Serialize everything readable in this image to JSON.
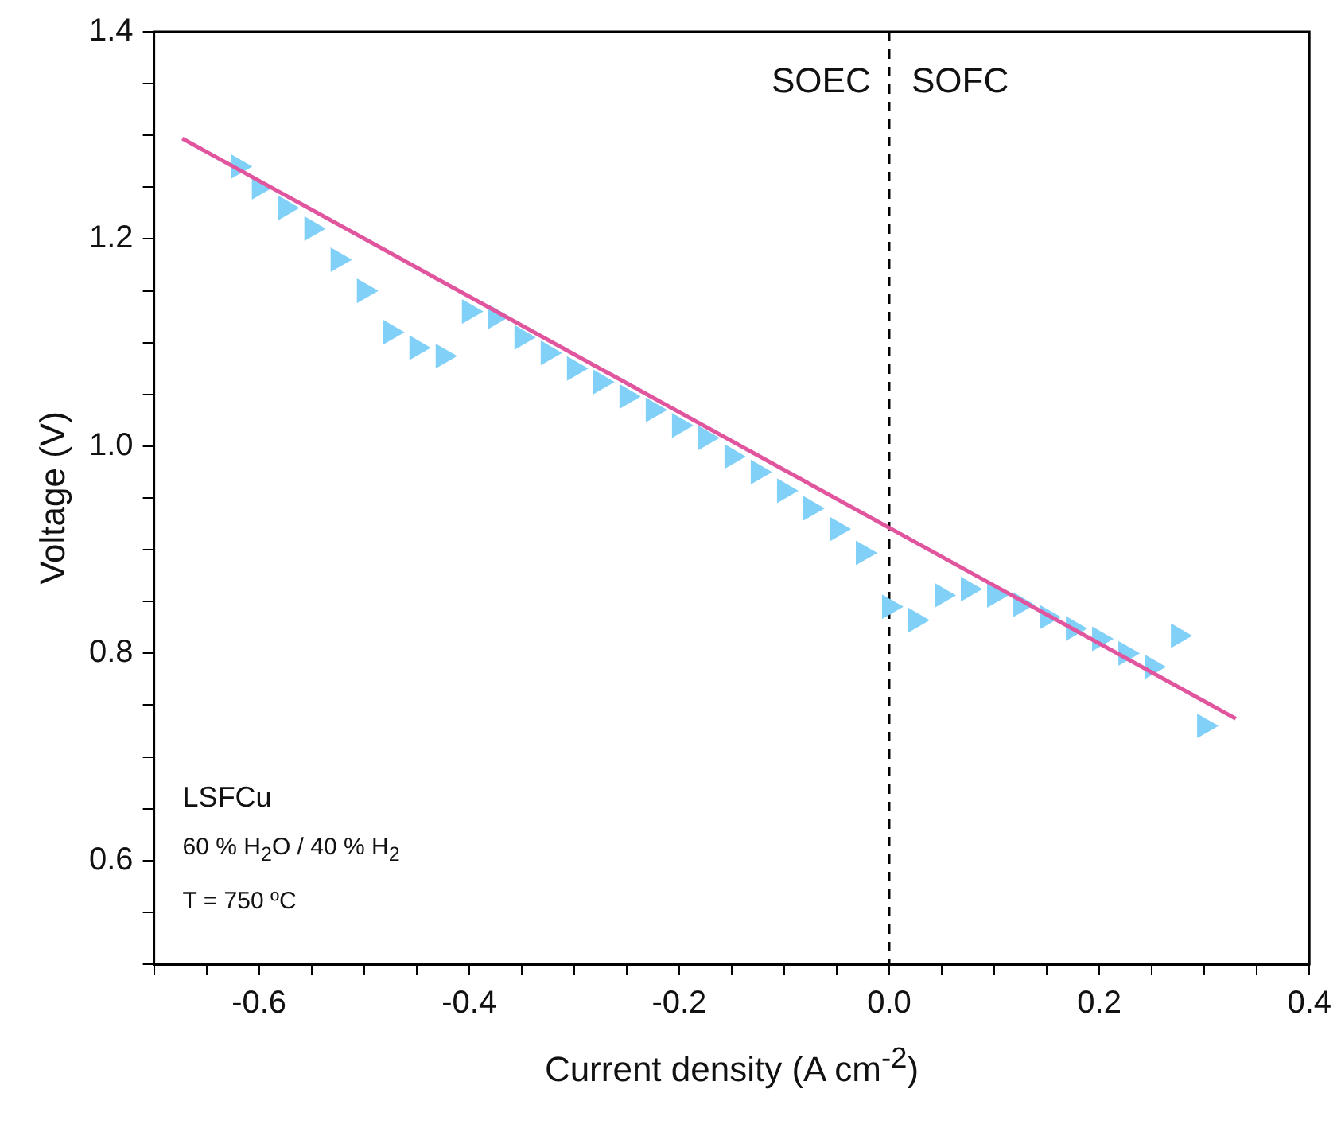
{
  "chart_data": {
    "type": "scatter",
    "xlabel": "Current density (A cm$^{-2}$)",
    "ylabel": "Voltage (V)",
    "xlim": [
      -0.7,
      0.4
    ],
    "ylim": [
      0.5,
      1.4
    ],
    "xticks": [
      {
        "value": -0.7,
        "label": null
      },
      {
        "value": -0.65,
        "label": null
      },
      -0.6,
      {
        "value": -0.55,
        "label": null
      },
      {
        "value": -0.5,
        "label": null
      },
      {
        "value": -0.45,
        "label": null
      },
      -0.4,
      {
        "value": -0.35,
        "label": null
      },
      {
        "value": -0.3,
        "label": null
      },
      {
        "value": -0.25,
        "label": null
      },
      -0.2,
      {
        "value": -0.15,
        "label": null
      },
      {
        "value": -0.1,
        "label": null
      },
      {
        "value": -0.05,
        "label": null
      },
      {
        "value": 0,
        "label": "0.0"
      },
      {
        "value": 0.05,
        "label": null
      },
      {
        "value": 0.1,
        "label": null
      },
      {
        "value": 0.15,
        "label": null
      },
      0.2,
      {
        "value": 0.25,
        "label": null
      },
      {
        "value": 0.3,
        "label": null
      },
      {
        "value": 0.35,
        "label": null
      },
      0.4
    ],
    "yticks": [
      {
        "value": 0.5,
        "label": null
      },
      {
        "value": 0.55,
        "label": null
      },
      0.6,
      {
        "value": 0.65,
        "label": null
      },
      {
        "value": 0.7,
        "label": null
      },
      {
        "value": 0.75,
        "label": null
      },
      0.8,
      {
        "value": 0.85,
        "label": null
      },
      {
        "value": 0.9,
        "label": null
      },
      {
        "value": 0.95,
        "label": null
      },
      {
        "value": 1,
        "label": "1.0"
      },
      {
        "value": 1.05,
        "label": null
      },
      {
        "value": 1.1,
        "label": null
      },
      {
        "value": 1.15,
        "label": null
      },
      1.2,
      {
        "value": 1.25,
        "label": null
      },
      {
        "value": 1.3,
        "label": null
      },
      {
        "value": 1.35,
        "label": null
      },
      1.4
    ],
    "series": [
      {
        "marker": "triangle",
        "color": "#80d0f8",
        "x": [
          -0.62,
          -0.6,
          -0.575,
          -0.55,
          -0.525,
          -0.5,
          -0.475,
          -0.45,
          -0.425,
          -0.4,
          -0.375,
          -0.35,
          -0.325,
          -0.3,
          -0.275,
          -0.25,
          -0.225,
          -0.2,
          -0.175,
          -0.15,
          -0.125,
          -0.1,
          -0.075,
          -0.05,
          -0.025,
          0,
          0.025,
          0.05,
          0.075,
          0.1,
          0.125,
          0.15,
          0.175,
          0.2,
          0.225,
          0.25,
          0.275,
          0.3
        ],
        "values": [
          1.27,
          1.25,
          1.23,
          1.21,
          1.18,
          1.15,
          1.11,
          1.095,
          1.087,
          1.13,
          1.125,
          1.105,
          1.09,
          1.075,
          1.062,
          1.048,
          1.035,
          1.02,
          1.008,
          0.99,
          0.975,
          0.957,
          0.94,
          0.92,
          0.897,
          0.845,
          0.832,
          0.856,
          0.862,
          0.856,
          0.847,
          0.835,
          0.824,
          0.814,
          0.8,
          0.787,
          0.817,
          0.73
        ]
      },
      {
        "type": "line",
        "color": "#e0559e",
        "x": [
          -0.673,
          0.33
        ],
        "values": [
          1.297,
          0.737
        ]
      }
    ],
    "ref_lines": [
      {
        "axis": "x",
        "value": 0,
        "color": "#000000",
        "line_style": "dashed"
      }
    ],
    "annotations": [
      "SOEC",
      "SOFC",
      "LSFCu",
      "60 % H$_{2}$O / 40 % H$_{2}$",
      "T = 750 ºC"
    ]
  }
}
